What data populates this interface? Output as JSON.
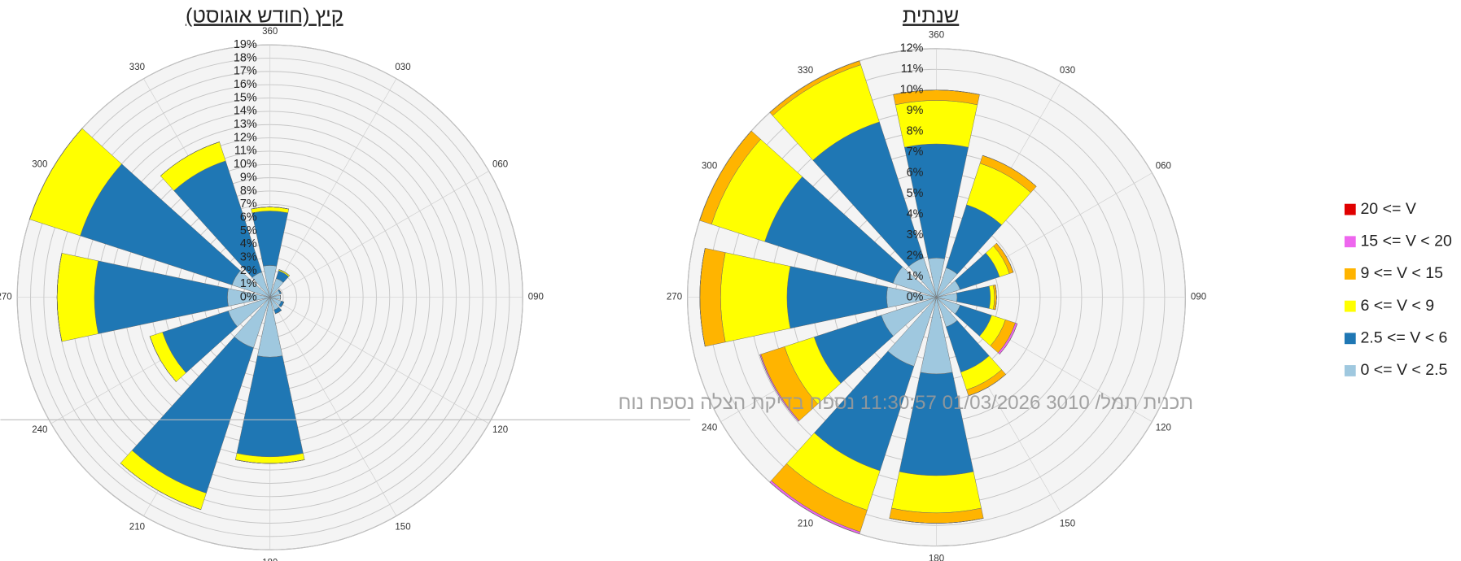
{
  "speed_classes": [
    {
      "name": "0 <= V < 2.5",
      "color": "#9fc8df"
    },
    {
      "name": "2.5 <= V < 6",
      "color": "#1f77b4"
    },
    {
      "name": "6 <= V < 9",
      "color": "#ffff00"
    },
    {
      "name": "9 <= V < 15",
      "color": "#ffb400"
    },
    {
      "name": "15 <= V < 20",
      "color": "#ee66ee"
    },
    {
      "name": "20 <= V",
      "color": "#e00000"
    }
  ],
  "watermark": "תכנית תמל/ 3010 01/03/2026 11:30:57 נספח בדיקת הצלה נספח נוח",
  "chart_data": [
    {
      "type": "windrose",
      "title": "קיץ (חודש אוגוסט)",
      "categories": [
        "360",
        "030",
        "060",
        "090",
        "120",
        "150",
        "180",
        "210",
        "240",
        "270",
        "300",
        "330"
      ],
      "rlim": [
        0,
        19
      ],
      "rticks": [
        {
          "value": 0,
          "label": "0%"
        },
        {
          "value": 1,
          "label": "1%"
        },
        {
          "value": 2,
          "label": "2%"
        },
        {
          "value": 3,
          "label": "3%"
        },
        {
          "value": 4,
          "label": "4%"
        },
        {
          "value": 5,
          "label": "5%"
        },
        {
          "value": 6,
          "label": "6%"
        },
        {
          "value": 7,
          "label": "7%"
        },
        {
          "value": 8,
          "label": "8%"
        },
        {
          "value": 9,
          "label": "9%"
        },
        {
          "value": 10,
          "label": "10%"
        },
        {
          "value": 11,
          "label": "11%"
        },
        {
          "value": 12,
          "label": "12%"
        },
        {
          "value": 13,
          "label": "13%"
        },
        {
          "value": 14,
          "label": "14%"
        },
        {
          "value": 15,
          "label": "15%"
        },
        {
          "value": 16,
          "label": "16%"
        },
        {
          "value": 17,
          "label": "17%"
        },
        {
          "value": 18,
          "label": "18%"
        },
        {
          "value": 19,
          "label": "19%"
        }
      ],
      "series": [
        {
          "values": [
            2.4,
            1.5,
            0.8,
            0.8,
            0.9,
            1.0,
            4.5,
            4.0,
            3.3,
            3.2,
            3.0,
            2.0
          ]
        },
        {
          "values": [
            4.1,
            0.6,
            0.1,
            0,
            0.2,
            0.3,
            7.5,
            11.5,
            5.2,
            10.0,
            12.0,
            8.8
          ]
        },
        {
          "values": [
            0.3,
            0.1,
            0,
            0,
            0,
            0,
            0.5,
            1.3,
            1.0,
            2.8,
            4.0,
            1.5
          ]
        },
        {
          "values": [
            0,
            0,
            0,
            0,
            0,
            0,
            0,
            0,
            0,
            0,
            0,
            0
          ]
        },
        {
          "values": [
            0,
            0,
            0,
            0,
            0,
            0,
            0,
            0,
            0,
            0,
            0,
            0
          ]
        },
        {
          "values": [
            0,
            0,
            0,
            0,
            0,
            0,
            0,
            0,
            0,
            0,
            0,
            0
          ]
        }
      ]
    },
    {
      "type": "windrose",
      "title": "שנתית",
      "categories": [
        "360",
        "030",
        "060",
        "090",
        "120",
        "150",
        "180",
        "210",
        "240",
        "270",
        "300",
        "330"
      ],
      "rlim": [
        0,
        12
      ],
      "rticks": [
        {
          "value": 0,
          "label": "0%"
        },
        {
          "value": 1,
          "label": "1%"
        },
        {
          "value": 2,
          "label": "2%"
        },
        {
          "value": 3,
          "label": "3%"
        },
        {
          "value": 4,
          "label": "4%"
        },
        {
          "value": 5,
          "label": "5%"
        },
        {
          "value": 6,
          "label": "6%"
        },
        {
          "value": 7,
          "label": "7%"
        },
        {
          "value": 8,
          "label": "8%"
        },
        {
          "value": 9,
          "label": "9%"
        },
        {
          "value": 10,
          "label": "10%"
        },
        {
          "value": 11,
          "label": "11%"
        },
        {
          "value": 12,
          "label": "12%"
        }
      ],
      "series": [
        {
          "values": [
            1.9,
            1.5,
            1.2,
            1.0,
            1.2,
            1.5,
            3.7,
            3.5,
            2.8,
            2.4,
            2.2,
            2.0
          ]
        },
        {
          "values": [
            5.5,
            3.2,
            2.0,
            1.6,
            1.6,
            2.3,
            4.9,
            5.3,
            3.4,
            4.8,
            6.5,
            6.9
          ]
        },
        {
          "values": [
            2.1,
            2.1,
            0.5,
            0.2,
            0.7,
            0.9,
            1.8,
            2.0,
            1.5,
            3.2,
            2.7,
            2.9
          ]
        },
        {
          "values": [
            0.5,
            0.4,
            0.2,
            0.1,
            0.5,
            0.3,
            0.5,
            1.1,
            1.2,
            1.0,
            0.6,
            0.2
          ]
        },
        {
          "values": [
            0,
            0,
            0,
            0,
            0.1,
            0,
            0,
            0.1,
            0.05,
            0,
            0,
            0
          ]
        },
        {
          "values": [
            0,
            0,
            0,
            0,
            0,
            0,
            0,
            0,
            0,
            0,
            0,
            0
          ]
        }
      ]
    }
  ]
}
